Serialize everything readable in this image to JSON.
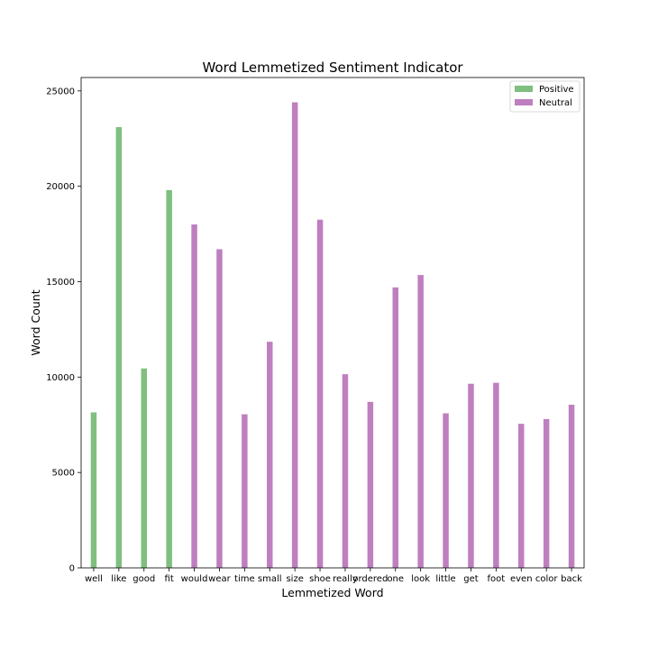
{
  "chart_data": {
    "type": "bar",
    "title": "Word Lemmetized Sentiment Indicator",
    "xlabel": "Lemmetized Word",
    "ylabel": "Word Count",
    "ylim": [
      0,
      25700
    ],
    "yticks": [
      0,
      5000,
      10000,
      15000,
      20000,
      25000
    ],
    "legend_position": "top-right",
    "categories": [
      "well",
      "like",
      "good",
      "fit",
      "would",
      "wear",
      "time",
      "small",
      "size",
      "shoe",
      "really",
      "ordered",
      "one",
      "look",
      "little",
      "get",
      "foot",
      "even",
      "color",
      "back"
    ],
    "series": [
      {
        "name": "Positive",
        "color": "#7fbf7f",
        "values": [
          8150,
          23100,
          10450,
          19800,
          null,
          null,
          null,
          null,
          null,
          null,
          null,
          null,
          null,
          null,
          null,
          null,
          null,
          null,
          null,
          null
        ]
      },
      {
        "name": "Neutral",
        "color": "#bf7fbf",
        "values": [
          null,
          null,
          null,
          null,
          18000,
          16700,
          8050,
          11850,
          24400,
          18250,
          10150,
          8700,
          14700,
          15350,
          8100,
          9650,
          9700,
          7550,
          7800,
          8550
        ]
      }
    ]
  }
}
